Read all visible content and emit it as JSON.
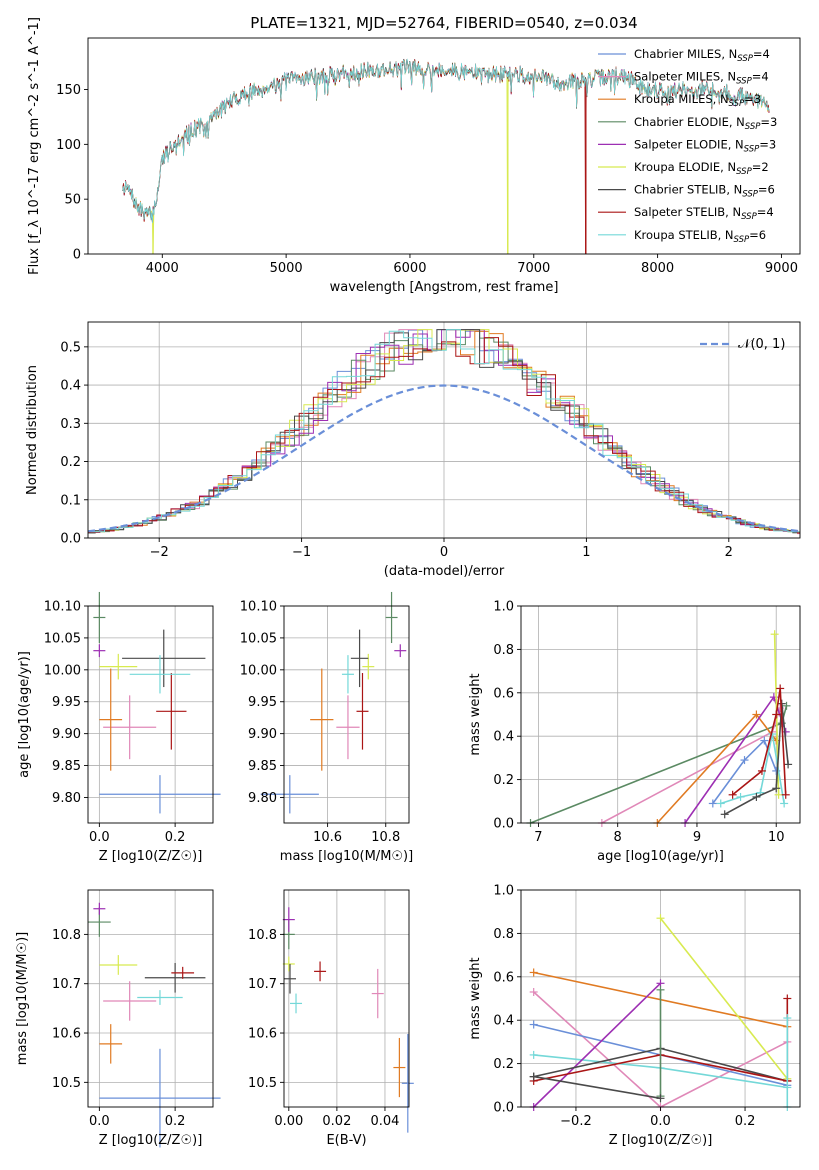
{
  "figure_title": "PLATE=1321, MJD=52764, FIBERID=0540, z=0.034",
  "colors": {
    "Chabrier MILES": "#6a8fd8",
    "Salpeter MILES": "#e088b8",
    "Kroupa MILES": "#e07a22",
    "Chabrier ELODIE": "#5b8a63",
    "Salpeter ELODIE": "#9d2fb3",
    "Kroupa ELODIE": "#d8ea50",
    "Chabrier STELIB": "#4a4a4a",
    "Salpeter STELIB": "#aa1515",
    "Kroupa STELIB": "#74d8d8",
    "gaussian": "#6a8fd8"
  },
  "chart_data": [
    {
      "id": "spectrum",
      "type": "line",
      "title": "PLATE=1321, MJD=52764, FIBERID=0540, z=0.034",
      "xlabel": "wavelength [Angstrom, rest frame]",
      "ylabel": "Flux [f_λ 10^-17 erg cm^-2 s^-1 A^-1]",
      "xlim": [
        3400,
        9150
      ],
      "ylim": [
        0,
        197
      ],
      "xticks": [
        4000,
        5000,
        6000,
        7000,
        8000,
        9000
      ],
      "yticks": [
        0,
        50,
        100,
        150
      ],
      "legend_position": "top-right",
      "legend": [
        {
          "model": "Chabrier MILES",
          "label": "Chabrier MILES, N",
          "sub": "SSP",
          "suffix": "=4"
        },
        {
          "model": "Salpeter MILES",
          "label": "Salpeter MILES, N",
          "sub": "SSP",
          "suffix": "=4"
        },
        {
          "model": "Kroupa MILES",
          "label": "Kroupa MILES, N",
          "sub": "SSP",
          "suffix": "=3"
        },
        {
          "model": "Chabrier ELODIE",
          "label": "Chabrier ELODIE, N",
          "sub": "SSP",
          "suffix": "=3"
        },
        {
          "model": "Salpeter ELODIE",
          "label": "Salpeter ELODIE, N",
          "sub": "SSP",
          "suffix": "=3"
        },
        {
          "model": "Kroupa ELODIE",
          "label": "Kroupa ELODIE, N",
          "sub": "SSP",
          "suffix": "=2"
        },
        {
          "model": "Chabrier STELIB",
          "label": "Chabrier STELIB, N",
          "sub": "SSP",
          "suffix": "=6"
        },
        {
          "model": "Salpeter STELIB",
          "label": "Salpeter STELIB, N",
          "sub": "SSP",
          "suffix": "=4"
        },
        {
          "model": "Kroupa STELIB",
          "label": "Kroupa STELIB, N",
          "sub": "SSP",
          "suffix": "=6"
        }
      ],
      "continuum": [
        [
          3680,
          62
        ],
        [
          3730,
          58
        ],
        [
          3800,
          42
        ],
        [
          3860,
          37
        ],
        [
          3920,
          35
        ],
        [
          3960,
          55
        ],
        [
          4000,
          88
        ],
        [
          4100,
          102
        ],
        [
          4200,
          110
        ],
        [
          4300,
          118
        ],
        [
          4350,
          112
        ],
        [
          4400,
          125
        ],
        [
          4500,
          135
        ],
        [
          4600,
          142
        ],
        [
          4700,
          148
        ],
        [
          4800,
          150
        ],
        [
          4900,
          155
        ],
        [
          5000,
          158
        ],
        [
          5100,
          160
        ],
        [
          5200,
          162
        ],
        [
          5300,
          162
        ],
        [
          5400,
          164
        ],
        [
          5500,
          166
        ],
        [
          5600,
          166
        ],
        [
          5700,
          168
        ],
        [
          5800,
          168
        ],
        [
          5900,
          170
        ],
        [
          6000,
          170
        ],
        [
          6100,
          170
        ],
        [
          6200,
          168
        ],
        [
          6300,
          168
        ],
        [
          6400,
          166
        ],
        [
          6500,
          166
        ],
        [
          6600,
          164
        ],
        [
          6700,
          164
        ],
        [
          6800,
          164
        ],
        [
          6900,
          164
        ],
        [
          7000,
          162
        ],
        [
          7100,
          160
        ],
        [
          7200,
          155
        ],
        [
          7300,
          158
        ],
        [
          7400,
          158
        ],
        [
          7500,
          160
        ],
        [
          7600,
          162
        ],
        [
          7700,
          164
        ],
        [
          7800,
          158
        ],
        [
          7900,
          150
        ],
        [
          8000,
          150
        ],
        [
          8100,
          148
        ],
        [
          8200,
          150
        ],
        [
          8300,
          148
        ],
        [
          8400,
          152
        ],
        [
          8500,
          148
        ],
        [
          8600,
          146
        ],
        [
          8700,
          144
        ],
        [
          8800,
          140
        ],
        [
          8900,
          136
        ]
      ],
      "dips": [
        {
          "model": "Kroupa ELODIE",
          "x": 3925
        },
        {
          "model": "Kroupa ELODIE",
          "x": 6790
        },
        {
          "model": "Salpeter STELIB",
          "x": 7420
        }
      ]
    },
    {
      "id": "residuals",
      "type": "histogram",
      "xlabel": "(data-model)/error",
      "ylabel": "Normed distribution",
      "xlim": [
        -2.5,
        2.5
      ],
      "ylim": [
        0,
        0.565
      ],
      "xticks": [
        -2,
        -1,
        0,
        1,
        2
      ],
      "yticks": [
        0.0,
        0.1,
        0.2,
        0.3,
        0.4,
        0.5
      ],
      "grid": true,
      "legend_position": "top-right",
      "gaussian_label": "𝒩(0, 1)",
      "bin_width": 0.1
    },
    {
      "id": "age_vs_Z",
      "type": "errorbar",
      "xlabel": "Z [log10(Z/Z☉)]",
      "ylabel": "age [log10(age/yr)]",
      "xlim": [
        -0.03,
        0.3
      ],
      "ylim": [
        9.76,
        10.1
      ],
      "xticks": [
        0.0,
        0.2
      ],
      "yticks": [
        9.8,
        9.85,
        9.9,
        9.95,
        10.0,
        10.05,
        10.1
      ],
      "grid": true,
      "points": [
        {
          "model": "Chabrier MILES",
          "x": 0.16,
          "xerr": 0.16,
          "y": 9.805,
          "yerr": 0.03
        },
        {
          "model": "Salpeter MILES",
          "x": 0.08,
          "xerr": 0.07,
          "y": 9.91,
          "yerr": 0.05
        },
        {
          "model": "Kroupa MILES",
          "x": 0.03,
          "xerr": 0.03,
          "y": 9.922,
          "yerr": 0.08
        },
        {
          "model": "Chabrier ELODIE",
          "x": 0.0,
          "xerr": 0.0,
          "y": 10.082,
          "yerr": 0.04
        },
        {
          "model": "Salpeter ELODIE",
          "x": 0.0,
          "xerr": 0.0,
          "y": 10.03,
          "yerr": 0.01
        },
        {
          "model": "Kroupa ELODIE",
          "x": 0.05,
          "xerr": 0.05,
          "y": 10.005,
          "yerr": 0.02
        },
        {
          "model": "Chabrier STELIB",
          "x": 0.17,
          "xerr": 0.11,
          "y": 10.018,
          "yerr": 0.045
        },
        {
          "model": "Salpeter STELIB",
          "x": 0.19,
          "xerr": 0.04,
          "y": 9.935,
          "yerr": 0.06
        },
        {
          "model": "Kroupa STELIB",
          "x": 0.16,
          "xerr": 0.08,
          "y": 9.993,
          "yerr": 0.03
        }
      ]
    },
    {
      "id": "age_vs_mass",
      "type": "errorbar",
      "xlabel": "mass [log10(M/M☉)]",
      "ylabel": "",
      "xlim": [
        10.45,
        10.88
      ],
      "ylim": [
        9.76,
        10.1
      ],
      "xticks": [
        10.6,
        10.8
      ],
      "yticks": [
        9.8,
        9.85,
        9.9,
        9.95,
        10.0,
        10.05,
        10.1
      ],
      "grid": true,
      "points": [
        {
          "model": "Chabrier MILES",
          "x": 10.47,
          "xerr": 0.1,
          "y": 9.805,
          "yerr": 0.03
        },
        {
          "model": "Salpeter MILES",
          "x": 10.67,
          "xerr": 0.04,
          "y": 9.91,
          "yerr": 0.05
        },
        {
          "model": "Kroupa MILES",
          "x": 10.58,
          "xerr": 0.04,
          "y": 9.922,
          "yerr": 0.08
        },
        {
          "model": "Chabrier ELODIE",
          "x": 10.82,
          "xerr": 0.0,
          "y": 10.082,
          "yerr": 0.04
        },
        {
          "model": "Salpeter ELODIE",
          "x": 10.85,
          "xerr": 0.0,
          "y": 10.03,
          "yerr": 0.01
        },
        {
          "model": "Kroupa ELODIE",
          "x": 10.74,
          "xerr": 0.0,
          "y": 10.005,
          "yerr": 0.02
        },
        {
          "model": "Chabrier STELIB",
          "x": 10.71,
          "xerr": 0.03,
          "y": 10.018,
          "yerr": 0.045
        },
        {
          "model": "Salpeter STELIB",
          "x": 10.72,
          "xerr": 0.01,
          "y": 9.935,
          "yerr": 0.06
        },
        {
          "model": "Kroupa STELIB",
          "x": 10.67,
          "xerr": 0.01,
          "y": 9.993,
          "yerr": 0.03
        }
      ]
    },
    {
      "id": "weight_vs_age",
      "type": "line",
      "xlabel": "age [log10(age/yr)]",
      "ylabel": "mass weight",
      "xlim": [
        6.78,
        10.3
      ],
      "ylim": [
        0,
        1.0
      ],
      "xticks": [
        7,
        8,
        9,
        10
      ],
      "yticks": [
        0.0,
        0.2,
        0.4,
        0.6,
        0.8,
        1.0
      ],
      "grid": true,
      "series": [
        {
          "model": "Chabrier ELODIE",
          "x": [
            6.9,
            10.07,
            10.13
          ],
          "y": [
            0.0,
            0.46,
            0.54
          ]
        },
        {
          "model": "Salpeter MILES",
          "x": [
            7.8,
            9.95,
            10.05
          ],
          "y": [
            0.0,
            0.42,
            0.53
          ]
        },
        {
          "model": "Kroupa MILES",
          "x": [
            8.5,
            9.75,
            10.0
          ],
          "y": [
            0.0,
            0.5,
            0.38
          ]
        },
        {
          "model": "Salpeter ELODIE",
          "x": [
            8.85,
            9.97,
            10.12
          ],
          "y": [
            0.0,
            0.58,
            0.42
          ]
        },
        {
          "model": "Kroupa ELODIE",
          "x": [
            9.98,
            10.03
          ],
          "y": [
            0.87,
            0.13
          ]
        },
        {
          "model": "Chabrier MILES",
          "x": [
            9.2,
            9.6,
            9.85,
            10.0
          ],
          "y": [
            0.09,
            0.29,
            0.38,
            0.24
          ]
        },
        {
          "model": "Kroupa STELIB",
          "x": [
            9.3,
            9.55,
            9.8,
            9.95,
            10.1
          ],
          "y": [
            0.09,
            0.12,
            0.14,
            0.41,
            0.09
          ]
        },
        {
          "model": "Chabrier STELIB",
          "x": [
            9.35,
            9.75,
            10.0,
            10.07,
            10.15
          ],
          "y": [
            0.04,
            0.12,
            0.16,
            0.55,
            0.27
          ]
        },
        {
          "model": "Salpeter STELIB",
          "x": [
            9.45,
            9.82,
            10.0,
            10.05,
            10.12
          ],
          "y": [
            0.13,
            0.24,
            0.5,
            0.62,
            0.13
          ]
        }
      ]
    },
    {
      "id": "mass_vs_Z",
      "type": "errorbar",
      "xlabel": "Z [log10(Z/Z☉)]",
      "ylabel": "mass [log10(M/M☉)]",
      "xlim": [
        -0.03,
        0.3
      ],
      "ylim": [
        10.45,
        10.89
      ],
      "xticks": [
        0.0,
        0.2
      ],
      "yticks": [
        10.5,
        10.6,
        10.7,
        10.8
      ],
      "grid": true,
      "points": [
        {
          "model": "Chabrier MILES",
          "x": 0.16,
          "xerr": 0.16,
          "y": 10.468,
          "yerr": 0.1
        },
        {
          "model": "Salpeter MILES",
          "x": 0.08,
          "xerr": 0.07,
          "y": 10.665,
          "yerr": 0.04
        },
        {
          "model": "Kroupa MILES",
          "x": 0.03,
          "xerr": 0.03,
          "y": 10.578,
          "yerr": 0.04
        },
        {
          "model": "Chabrier ELODIE",
          "x": 0.0,
          "xerr": 0.03,
          "y": 10.825,
          "yerr": 0.03
        },
        {
          "model": "Salpeter ELODIE",
          "x": 0.0,
          "xerr": 0.01,
          "y": 10.852,
          "yerr": 0.01
        },
        {
          "model": "Kroupa ELODIE",
          "x": 0.05,
          "xerr": 0.05,
          "y": 10.738,
          "yerr": 0.02
        },
        {
          "model": "Chabrier STELIB",
          "x": 0.2,
          "xerr": 0.08,
          "y": 10.712,
          "yerr": 0.03
        },
        {
          "model": "Salpeter STELIB",
          "x": 0.22,
          "xerr": 0.03,
          "y": 10.722,
          "yerr": 0.01
        },
        {
          "model": "Kroupa STELIB",
          "x": 0.16,
          "xerr": 0.06,
          "y": 10.672,
          "yerr": 0.015
        }
      ]
    },
    {
      "id": "mass_vs_ebv",
      "type": "errorbar",
      "xlabel": "E(B-V)",
      "ylabel": "",
      "xlim": [
        -0.002,
        0.05
      ],
      "ylim": [
        10.45,
        10.89
      ],
      "xticks": [
        0.0,
        0.02,
        0.04
      ],
      "yticks": [
        10.5,
        10.6,
        10.7,
        10.8
      ],
      "grid": true,
      "points": [
        {
          "model": "Chabrier MILES",
          "x": 0.0495,
          "xerr": 0,
          "y": 10.498,
          "yerr": 0.1
        },
        {
          "model": "Salpeter MILES",
          "x": 0.037,
          "xerr": 0,
          "y": 10.68,
          "yerr": 0.05
        },
        {
          "model": "Kroupa MILES",
          "x": 0.046,
          "xerr": 0,
          "y": 10.53,
          "yerr": 0.06
        },
        {
          "model": "Chabrier ELODIE",
          "x": 0.0,
          "xerr": 0,
          "y": 10.8,
          "yerr": 0.03
        },
        {
          "model": "Salpeter ELODIE",
          "x": 0.0,
          "xerr": 0,
          "y": 10.83,
          "yerr": 0.025
        },
        {
          "model": "Kroupa ELODIE",
          "x": 0.0,
          "xerr": 0,
          "y": 10.74,
          "yerr": 0.015
        },
        {
          "model": "Chabrier STELIB",
          "x": 0.0005,
          "xerr": 0,
          "y": 10.71,
          "yerr": 0.03
        },
        {
          "model": "Salpeter STELIB",
          "x": 0.013,
          "xerr": 0,
          "y": 10.725,
          "yerr": 0.02
        },
        {
          "model": "Kroupa STELIB",
          "x": 0.003,
          "xerr": 0,
          "y": 10.66,
          "yerr": 0.02
        }
      ]
    },
    {
      "id": "weight_vs_Z",
      "type": "line",
      "xlabel": "Z [log10(Z/Z☉)]",
      "ylabel": "mass weight",
      "xlim": [
        -0.33,
        0.33
      ],
      "ylim": [
        0,
        1.0
      ],
      "xticks": [
        -0.2,
        0.0,
        0.2
      ],
      "yticks": [
        0.0,
        0.2,
        0.4,
        0.6,
        0.8,
        1.0
      ],
      "grid": true,
      "series": [
        {
          "model": "Kroupa MILES",
          "x": [
            -0.3,
            0.3
          ],
          "y": [
            0.62,
            0.37
          ]
        },
        {
          "model": "Salpeter MILES",
          "x": [
            -0.3,
            0.0,
            0.3
          ],
          "y": [
            0.53,
            0.0,
            0.3
          ]
        },
        {
          "model": "Chabrier MILES",
          "x": [
            -0.3,
            0.3
          ],
          "y": [
            0.38,
            0.1
          ]
        },
        {
          "model": "Kroupa STELIB",
          "x": [
            -0.3,
            0.0,
            0.3
          ],
          "y": [
            0.24,
            0.18,
            0.09
          ]
        },
        {
          "model": "Salpeter ELODIE",
          "x": [
            -0.3,
            0.0
          ],
          "y": [
            0.0,
            0.57
          ]
        },
        {
          "model": "Kroupa ELODIE",
          "x": [
            0.0,
            0.3
          ],
          "y": [
            0.87,
            0.13
          ]
        },
        {
          "model": "Chabrier STELIB",
          "x": [
            -0.3,
            0.0,
            0.3
          ],
          "y": [
            0.14,
            0.27,
            0.12
          ]
        },
        {
          "model": "Salpeter STELIB",
          "x": [
            -0.3,
            0.0,
            0.3
          ],
          "y": [
            0.12,
            0.24,
            0.12
          ]
        },
        {
          "model": "Chabrier ELODIE",
          "x": [
            0.0,
            0.0
          ],
          "y": [
            0.05,
            0.54
          ]
        },
        {
          "model": "Chabrier STELIB",
          "x": [
            -0.3,
            0.0
          ],
          "y": [
            0.14,
            0.04
          ]
        },
        {
          "model": "Salpeter STELIB",
          "x": [
            0.3,
            0.3
          ],
          "y": [
            0.12,
            0.5
          ]
        },
        {
          "model": "Kroupa STELIB",
          "x": [
            0.3,
            0.3
          ],
          "y": [
            0.0,
            0.41
          ]
        }
      ]
    }
  ]
}
